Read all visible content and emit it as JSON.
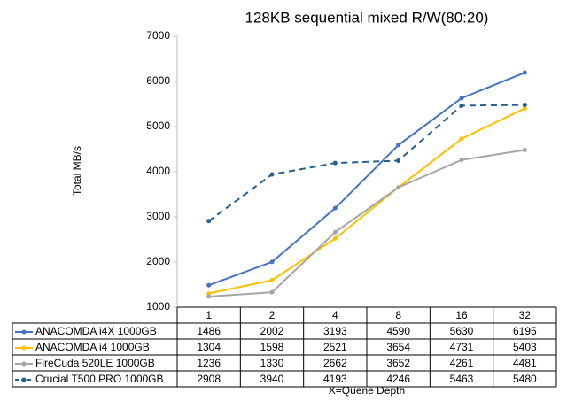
{
  "chart_data": {
    "type": "line",
    "title": "128KB sequential mixed R/W(80:20)",
    "x_label": "X=Quene Depth",
    "y_label": "Total MB/s",
    "categories": [
      "1",
      "2",
      "4",
      "8",
      "16",
      "32"
    ],
    "series": [
      {
        "name": "ANACOMDA i4X 1000GB",
        "color": "#4472c4",
        "dashed": false,
        "values": [
          1486,
          2002,
          3193,
          4590,
          5630,
          6195
        ]
      },
      {
        "name": "ANACOMDA i4 1000GB",
        "color": "#ffc000",
        "dashed": false,
        "values": [
          1304,
          1598,
          2521,
          3654,
          4731,
          5403
        ]
      },
      {
        "name": "FireCuda 520LE 1000GB",
        "color": "#a5a5a5",
        "dashed": false,
        "values": [
          1236,
          1330,
          2662,
          3652,
          4261,
          4481
        ]
      },
      {
        "name": "Crucial T500 PRO 1000GB",
        "color": "#255e91",
        "dashed": true,
        "values": [
          2908,
          3940,
          4193,
          4246,
          5463,
          5480
        ]
      }
    ],
    "ylim": [
      1000,
      7000
    ],
    "yticks": [
      1000,
      2000,
      3000,
      4000,
      5000,
      6000,
      7000
    ],
    "grid": false
  }
}
